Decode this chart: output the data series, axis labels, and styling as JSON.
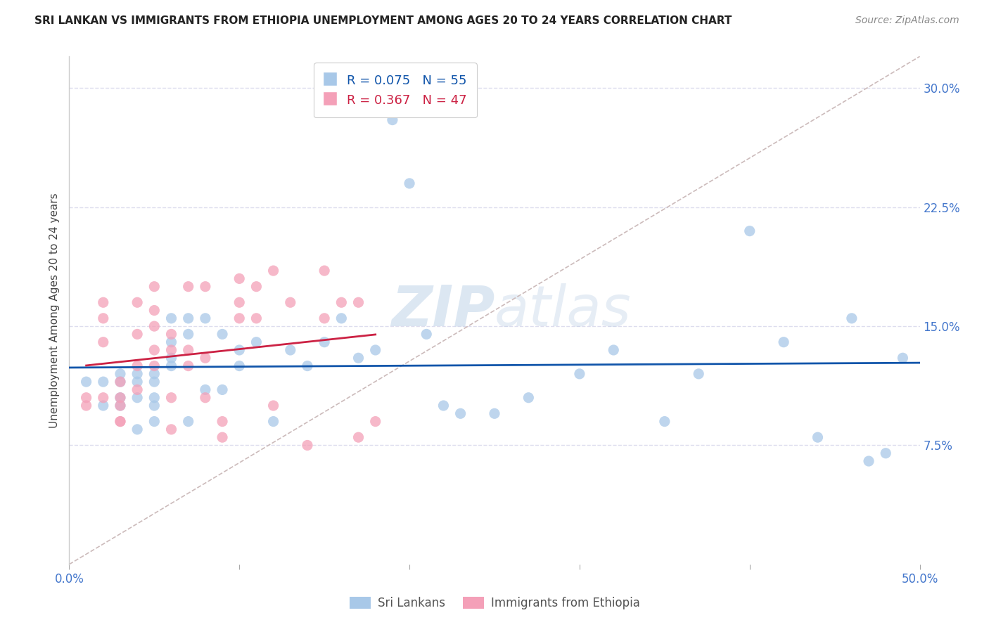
{
  "title": "SRI LANKAN VS IMMIGRANTS FROM ETHIOPIA UNEMPLOYMENT AMONG AGES 20 TO 24 YEARS CORRELATION CHART",
  "source": "Source: ZipAtlas.com",
  "ylabel": "Unemployment Among Ages 20 to 24 years",
  "xlim": [
    0.0,
    0.5
  ],
  "ylim": [
    0.0,
    0.32
  ],
  "xticks": [
    0.0,
    0.1,
    0.2,
    0.3,
    0.4,
    0.5
  ],
  "xticklabels": [
    "0.0%",
    "",
    "",
    "",
    "",
    "50.0%"
  ],
  "yticks": [
    0.075,
    0.15,
    0.225,
    0.3
  ],
  "yticklabels": [
    "7.5%",
    "15.0%",
    "22.5%",
    "30.0%"
  ],
  "sri_lankan_R": 0.075,
  "sri_lankan_N": 55,
  "ethiopia_R": 0.367,
  "ethiopia_N": 47,
  "sri_lankan_color": "#a8c8e8",
  "ethiopia_color": "#f4a0b8",
  "sri_lankan_line_color": "#1155aa",
  "ethiopia_line_color": "#cc2244",
  "diagonal_line_color": "#ccbbbb",
  "background_color": "#ffffff",
  "grid_color": "#ddddee",
  "watermark_zip": "ZIP",
  "watermark_atlas": "atlas",
  "sri_lankans_x": [
    0.01,
    0.02,
    0.02,
    0.03,
    0.03,
    0.03,
    0.03,
    0.04,
    0.04,
    0.04,
    0.04,
    0.05,
    0.05,
    0.05,
    0.05,
    0.05,
    0.06,
    0.06,
    0.06,
    0.06,
    0.07,
    0.07,
    0.07,
    0.08,
    0.08,
    0.09,
    0.09,
    0.1,
    0.1,
    0.11,
    0.12,
    0.13,
    0.14,
    0.15,
    0.16,
    0.17,
    0.18,
    0.19,
    0.2,
    0.21,
    0.22,
    0.23,
    0.25,
    0.27,
    0.3,
    0.32,
    0.35,
    0.37,
    0.4,
    0.42,
    0.44,
    0.46,
    0.47,
    0.48,
    0.49
  ],
  "sri_lankans_y": [
    0.115,
    0.1,
    0.115,
    0.105,
    0.12,
    0.1,
    0.115,
    0.085,
    0.105,
    0.115,
    0.12,
    0.09,
    0.1,
    0.105,
    0.115,
    0.12,
    0.125,
    0.13,
    0.155,
    0.14,
    0.09,
    0.145,
    0.155,
    0.11,
    0.155,
    0.11,
    0.145,
    0.135,
    0.125,
    0.14,
    0.09,
    0.135,
    0.125,
    0.14,
    0.155,
    0.13,
    0.135,
    0.28,
    0.24,
    0.145,
    0.1,
    0.095,
    0.095,
    0.105,
    0.12,
    0.135,
    0.09,
    0.12,
    0.21,
    0.14,
    0.08,
    0.155,
    0.065,
    0.07,
    0.13
  ],
  "ethiopia_x": [
    0.01,
    0.01,
    0.02,
    0.02,
    0.02,
    0.02,
    0.03,
    0.03,
    0.03,
    0.03,
    0.03,
    0.04,
    0.04,
    0.04,
    0.04,
    0.05,
    0.05,
    0.05,
    0.05,
    0.05,
    0.06,
    0.06,
    0.06,
    0.06,
    0.07,
    0.07,
    0.07,
    0.08,
    0.08,
    0.08,
    0.09,
    0.09,
    0.1,
    0.1,
    0.1,
    0.11,
    0.11,
    0.12,
    0.12,
    0.13,
    0.14,
    0.15,
    0.15,
    0.16,
    0.17,
    0.17,
    0.18
  ],
  "ethiopia_y": [
    0.1,
    0.105,
    0.165,
    0.155,
    0.14,
    0.105,
    0.09,
    0.1,
    0.115,
    0.105,
    0.09,
    0.11,
    0.145,
    0.125,
    0.165,
    0.135,
    0.16,
    0.15,
    0.175,
    0.125,
    0.105,
    0.135,
    0.145,
    0.085,
    0.125,
    0.135,
    0.175,
    0.105,
    0.13,
    0.175,
    0.08,
    0.09,
    0.155,
    0.165,
    0.18,
    0.155,
    0.175,
    0.1,
    0.185,
    0.165,
    0.075,
    0.155,
    0.185,
    0.165,
    0.08,
    0.165,
    0.09
  ]
}
